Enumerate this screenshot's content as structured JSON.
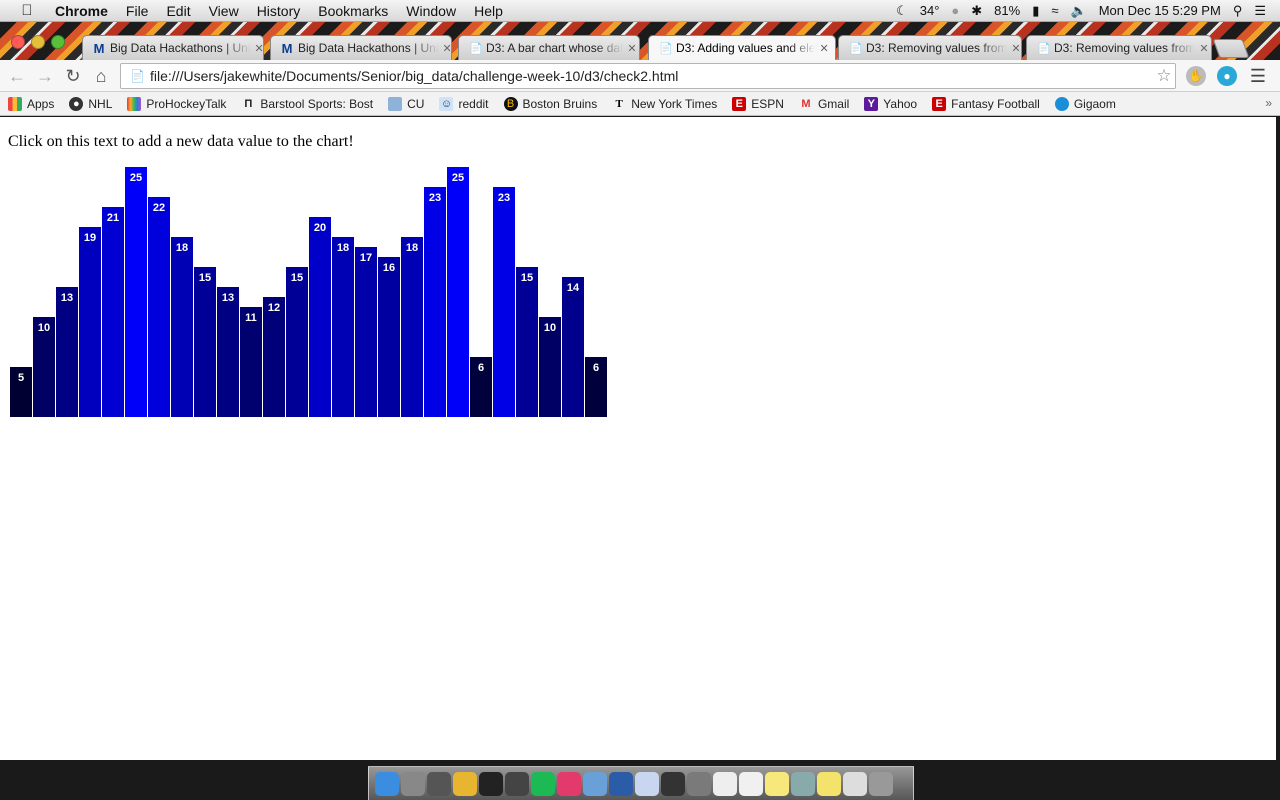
{
  "menubar": {
    "app_name": "Chrome",
    "menus": [
      "File",
      "Edit",
      "View",
      "History",
      "Bookmarks",
      "Window",
      "Help"
    ],
    "weather": "34°",
    "battery": "81%",
    "datetime": "Mon Dec 15  5:29 PM"
  },
  "tabs": [
    {
      "title": "Big Data Hackathons | Uni",
      "icon": "m-logo-icon"
    },
    {
      "title": "Big Data Hackathons | Uni",
      "icon": "m-logo-icon"
    },
    {
      "title": "D3: A bar chart whose dat",
      "icon": "page-icon"
    },
    {
      "title": "D3: Adding values and ele",
      "icon": "page-icon"
    },
    {
      "title": "D3: Removing values from",
      "icon": "page-icon"
    },
    {
      "title": "D3: Removing values from",
      "icon": "page-icon"
    }
  ],
  "active_tab": 3,
  "toolbar": {
    "url": "file:///Users/jakewhite/Documents/Senior/big_data/challenge-week-10/d3/check2.html"
  },
  "bookmarks": [
    {
      "label": "Apps",
      "icon": "apps-grid-icon"
    },
    {
      "label": "NHL",
      "icon": "nhl-icon"
    },
    {
      "label": "ProHockeyTalk",
      "icon": "nbc-icon"
    },
    {
      "label": "Barstool Sports: Bost",
      "icon": "barstool-icon"
    },
    {
      "label": "CU",
      "icon": "folder-icon"
    },
    {
      "label": "reddit",
      "icon": "reddit-icon"
    },
    {
      "label": "Boston Bruins",
      "icon": "bruins-icon"
    },
    {
      "label": "New York Times",
      "icon": "nyt-icon"
    },
    {
      "label": "ESPN",
      "icon": "espn-icon"
    },
    {
      "label": "Gmail",
      "icon": "gmail-icon"
    },
    {
      "label": "Yahoo",
      "icon": "yahoo-icon"
    },
    {
      "label": "Fantasy Football",
      "icon": "espn-icon"
    },
    {
      "label": "Gigaom",
      "icon": "gigaom-icon"
    }
  ],
  "bookmarks_overflow": "»",
  "page": {
    "instruction": "Click on this text to add a new data value to the chart!"
  },
  "chart_data": {
    "type": "bar",
    "values": [
      5,
      10,
      13,
      19,
      21,
      25,
      22,
      18,
      15,
      13,
      11,
      12,
      15,
      20,
      18,
      17,
      16,
      18,
      23,
      25,
      6,
      23,
      15,
      10,
      14,
      6
    ],
    "color_rule": "rgb(0, 0, value*10)",
    "label_color": "#ffffff"
  },
  "dock": {
    "apps": [
      "finder-icon",
      "launchpad-icon",
      "photo-booth-icon",
      "chrome-icon",
      "terminal-icon",
      "sublime-icon",
      "spotify-icon",
      "itunes-icon",
      "xcode-icon",
      "virtualbox-icon",
      "preview-icon",
      "github-icon",
      "server-icon",
      "textedit-icon",
      "calendar-icon",
      "notes-icon",
      "image-capture-icon",
      "stickies-icon",
      "documents-icon",
      "trash-icon"
    ]
  }
}
